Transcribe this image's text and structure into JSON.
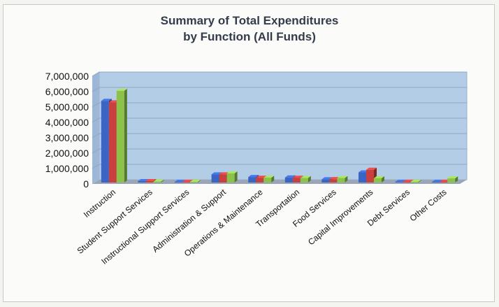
{
  "chart_data": {
    "type": "bar",
    "title_line1": "Summary of Total Expenditures",
    "title_line2": "by Function (All Funds)",
    "categories": [
      "Instruction",
      "Student Support Services",
      "Instructional Support Services",
      "Administration & Support",
      "Operations & Maintenance",
      "Transportation",
      "Food Services",
      "Capital Improvements",
      "Debt Services",
      "Other Costs"
    ],
    "series": [
      {
        "color": "#3b65c4",
        "values": [
          5400000,
          180000,
          80000,
          620000,
          450000,
          420000,
          300000,
          750000,
          60000,
          60000
        ]
      },
      {
        "color": "#c8403f",
        "values": [
          5300000,
          180000,
          90000,
          620000,
          400000,
          400000,
          310000,
          920000,
          50000,
          80000
        ]
      },
      {
        "color": "#8cc24a",
        "values": [
          6050000,
          150000,
          120000,
          680000,
          400000,
          380000,
          380000,
          370000,
          60000,
          360000
        ]
      }
    ],
    "ylim": [
      0,
      7000000
    ],
    "yticks": [
      "7,000,000",
      "6,000,000",
      "5,000,000",
      "4,000,000",
      "3,000,000",
      "2,000,000",
      "1,000,000",
      "0"
    ],
    "grid": true,
    "legend": "none"
  }
}
